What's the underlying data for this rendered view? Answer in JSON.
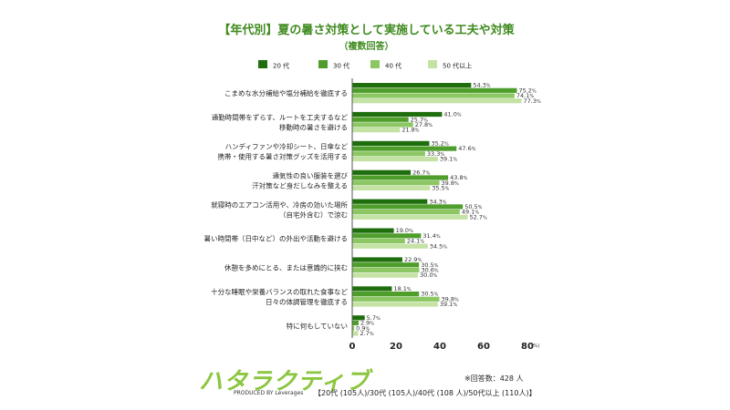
{
  "title": "【年代別】夏の暑さ対策として実施している工夫や対策",
  "subtitle": "（複数回答）",
  "brand": {
    "logo_text": "ハタラクティブ",
    "produced_by": "PRODUCED BY Leverages"
  },
  "notes": {
    "respondents": "※回答数：428 人",
    "breakdown": "【20代 (105人)/30代 (105人)/40代 (108 人)/50代以上 (110人)】"
  },
  "colors": {
    "s20": "#1f6e0d",
    "s30": "#4f9e2c",
    "s40": "#8cc764",
    "s50": "#c3e2a4"
  },
  "chart_data": {
    "type": "bar",
    "orientation": "horizontal",
    "unit": "%",
    "xlim": [
      0,
      80
    ],
    "x_ticks": [
      "0",
      "20",
      "40",
      "60",
      "80"
    ],
    "x_unit_label": "(%)",
    "legend_position": "top",
    "categories": [
      [
        "こまめな水分補給や塩分補給を徹底する"
      ],
      [
        "通勤時間帯をずらす、ルートを工夫するなど",
        "移動時の暑さを避ける"
      ],
      [
        "ハンディファンや冷却シート、日傘など",
        "携帯・使用する暑さ対策グッズを活用する"
      ],
      [
        "通気性の良い服装を選び",
        "汗対策など身だしなみを整える"
      ],
      [
        "就寝時のエアコン活用や、冷房の効いた場所",
        "（自宅外含む）で涼む"
      ],
      [
        "暑い時間帯（日中など）の外出や活動を避ける"
      ],
      [
        "休憩を多めにとる、または意識的に挟む"
      ],
      [
        "十分な睡眠や栄養バランスの取れた食事など",
        "日々の体調管理を徹底する"
      ],
      [
        "特に何もしていない"
      ]
    ],
    "series": [
      {
        "name": "20 代",
        "color": "#1f6e0d",
        "values": [
          54.3,
          41.0,
          35.2,
          26.7,
          34.3,
          19.0,
          22.9,
          18.1,
          5.7
        ]
      },
      {
        "name": "30 代",
        "color": "#4f9e2c",
        "values": [
          75.2,
          25.7,
          47.6,
          43.8,
          50.5,
          31.4,
          30.5,
          30.5,
          2.9
        ]
      },
      {
        "name": "40 代",
        "color": "#8cc764",
        "values": [
          74.1,
          27.8,
          33.3,
          39.8,
          49.1,
          24.1,
          30.6,
          39.8,
          0.9
        ]
      },
      {
        "name": "50 代以上",
        "color": "#c3e2a4",
        "values": [
          77.3,
          21.8,
          39.1,
          35.5,
          52.7,
          34.5,
          30.0,
          39.1,
          2.7
        ]
      }
    ]
  }
}
